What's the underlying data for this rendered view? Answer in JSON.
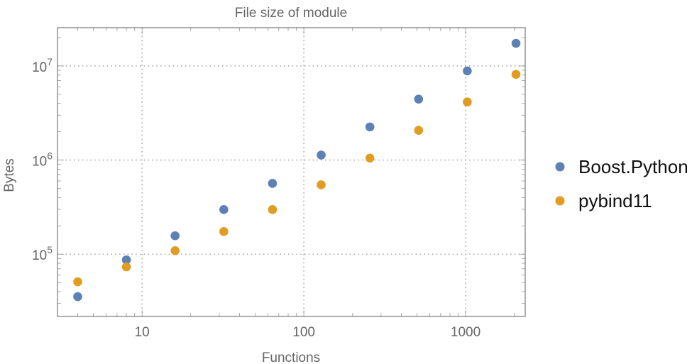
{
  "chart_data": {
    "type": "scatter",
    "title": "File size of module",
    "xlabel": "Functions",
    "ylabel": "Bytes",
    "xscale": "log",
    "yscale": "log",
    "xlim": [
      3.0,
      2335
    ],
    "ylim": [
      21800,
      25500000
    ],
    "grid": true,
    "legend_position": "right",
    "x_ticks": [
      {
        "value": 10,
        "label": "10"
      },
      {
        "value": 100,
        "label": "100"
      },
      {
        "value": 1000,
        "label": "1000"
      }
    ],
    "y_ticks": [
      {
        "value": 100000,
        "base": "10",
        "exp": "5"
      },
      {
        "value": 1000000,
        "base": "10",
        "exp": "6"
      },
      {
        "value": 10000000,
        "base": "10",
        "exp": "7"
      }
    ],
    "x": [
      4,
      8,
      16,
      32,
      64,
      128,
      256,
      512,
      1024,
      2048
    ],
    "series": [
      {
        "name": "Boost.Python",
        "color": "#5e81b5",
        "values": [
          35400,
          87000,
          157000,
          298000,
          565000,
          1130000,
          2250000,
          4440000,
          8860000,
          17400000
        ]
      },
      {
        "name": "pybind11",
        "color": "#e19c24",
        "values": [
          50900,
          73300,
          109000,
          174000,
          298000,
          546000,
          1050000,
          2070000,
          4140000,
          8130000
        ]
      }
    ]
  }
}
